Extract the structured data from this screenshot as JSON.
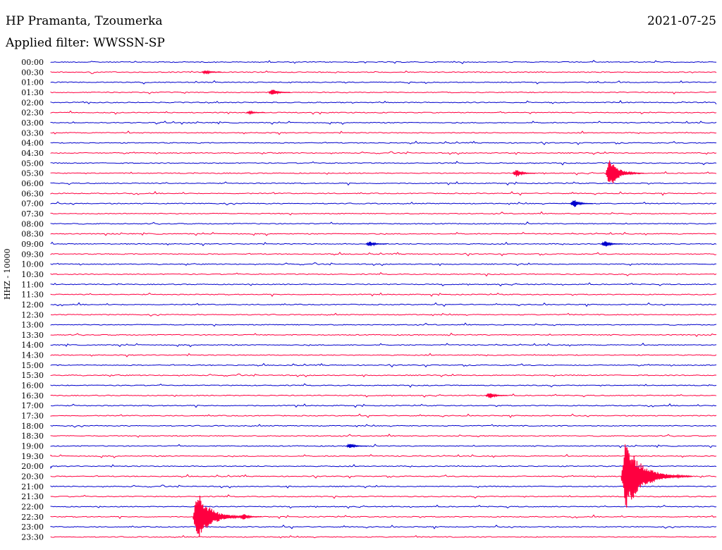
{
  "header": {
    "station": "HP Pramanta, Tzoumerka",
    "filter": "Applied filter: WWSSN-SP",
    "date": "2021-07-25",
    "channel_label": "HHZ - 10000"
  },
  "colors": {
    "odd_trace": "#0000cc",
    "even_trace": "#ff0040"
  },
  "chart_data": {
    "type": "helicorder",
    "title": "HP Pramanta, Tzoumerka",
    "subtitle": "Applied filter: WWSSN-SP",
    "ylabel": "HHZ - 10000",
    "row_minutes": 30,
    "row_labels": [
      "00:00",
      "00:30",
      "01:00",
      "01:30",
      "02:00",
      "02:30",
      "03:00",
      "03:30",
      "04:00",
      "04:30",
      "05:00",
      "05:30",
      "06:00",
      "06:30",
      "07:00",
      "07:30",
      "08:00",
      "08:30",
      "09:00",
      "09:30",
      "10:00",
      "10:30",
      "11:00",
      "11:30",
      "12:00",
      "12:30",
      "13:00",
      "13:30",
      "14:00",
      "14:30",
      "15:00",
      "15:30",
      "16:00",
      "16:30",
      "17:00",
      "17:30",
      "18:00",
      "18:30",
      "19:00",
      "19:30",
      "20:00",
      "20:30",
      "21:00",
      "21:30",
      "22:00",
      "22:30",
      "23:00",
      "23:30"
    ],
    "trace_colors": [
      "blue",
      "red"
    ],
    "events": [
      {
        "row": 1,
        "minute": 7.0,
        "amplitude": 3
      },
      {
        "row": 3,
        "minute": 10.0,
        "amplitude": 5
      },
      {
        "row": 5,
        "minute": 9.0,
        "amplitude": 2
      },
      {
        "row": 11,
        "minute": 21.0,
        "amplitude": 6
      },
      {
        "row": 11,
        "minute": 25.2,
        "amplitude": 22
      },
      {
        "row": 14,
        "minute": 23.6,
        "amplitude": 6
      },
      {
        "row": 18,
        "minute": 14.4,
        "amplitude": 4
      },
      {
        "row": 18,
        "minute": 25.0,
        "amplitude": 5
      },
      {
        "row": 33,
        "minute": 19.8,
        "amplitude": 5
      },
      {
        "row": 38,
        "minute": 13.5,
        "amplitude": 4
      },
      {
        "row": 41,
        "minute": 25.9,
        "amplitude": 55
      },
      {
        "row": 45,
        "minute": 6.6,
        "amplitude": 40
      },
      {
        "row": 45,
        "minute": 8.7,
        "amplitude": 5
      }
    ]
  }
}
